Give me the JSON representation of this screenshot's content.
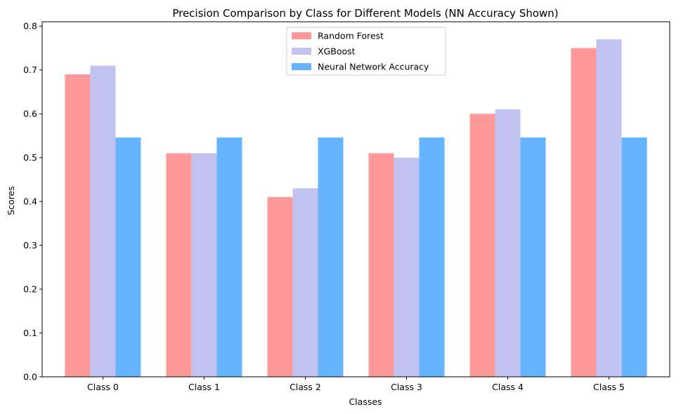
{
  "chart_data": {
    "type": "bar",
    "title": "Precision Comparison by Class for Different Models (NN Accuracy Shown)",
    "xlabel": "Classes",
    "ylabel": "Scores",
    "categories": [
      "Class 0",
      "Class 1",
      "Class 2",
      "Class 3",
      "Class 4",
      "Class 5"
    ],
    "series": [
      {
        "name": "Random Forest",
        "color": "#ff9999",
        "values": [
          0.69,
          0.51,
          0.41,
          0.51,
          0.6,
          0.75
        ]
      },
      {
        "name": "XGBoost",
        "color": "#c2c2f0",
        "values": [
          0.71,
          0.51,
          0.43,
          0.5,
          0.61,
          0.77
        ]
      },
      {
        "name": "Neural Network Accuracy",
        "color": "#66b3ff",
        "values": [
          0.546,
          0.546,
          0.546,
          0.546,
          0.546,
          0.546
        ]
      }
    ],
    "ylim": [
      0,
      0.81
    ],
    "yticks": [
      "0.0",
      "0.1",
      "0.2",
      "0.3",
      "0.4",
      "0.5",
      "0.6",
      "0.7",
      "0.8"
    ],
    "grid": false,
    "legend_position": "top-center"
  }
}
